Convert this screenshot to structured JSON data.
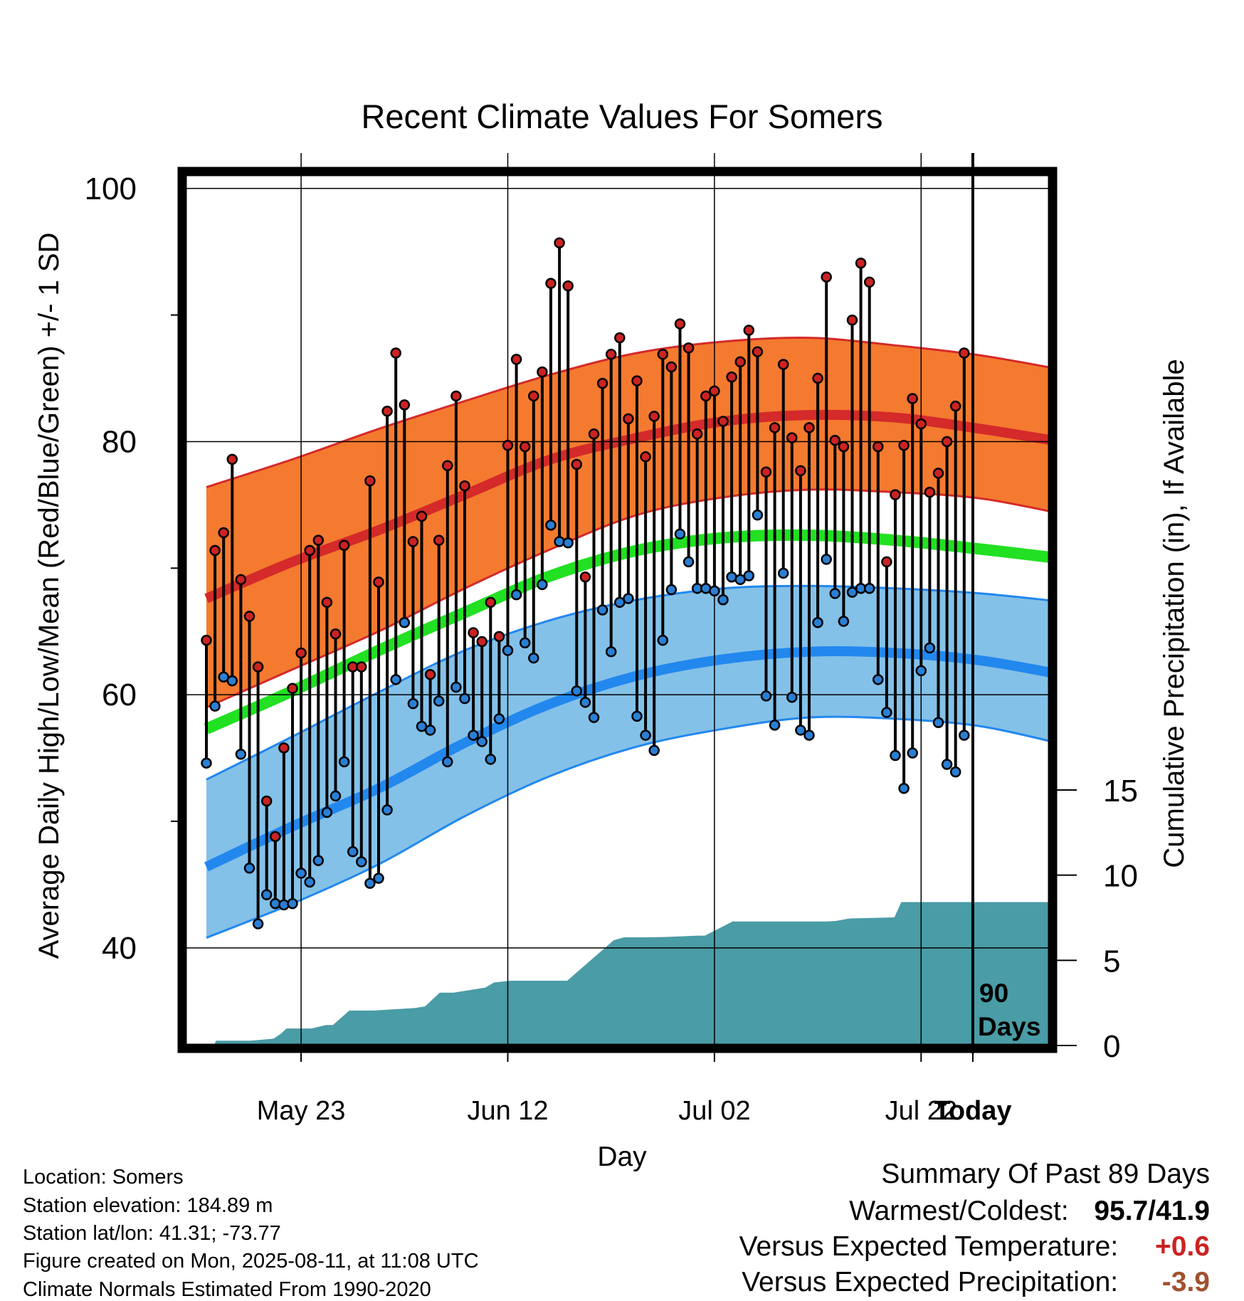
{
  "chart_data": {
    "type": "line",
    "title": "Recent Climate Values For Somers",
    "xlabel": "Day",
    "ylabel": "Average Daily High/Low/Mean (Red/Blue/Green) +/- 1 SD",
    "y2label": "Cumulative Precipitation (in), If Available",
    "x_ticks": [
      "May 23",
      "Jun 12",
      "Jul 02",
      "Jul 22",
      "Today"
    ],
    "y_ticks": [
      40,
      60,
      80,
      100
    ],
    "y2_ticks": [
      0,
      5,
      10,
      15
    ],
    "ylim": [
      32.4,
      101
    ],
    "y2lim": [
      0,
      15
    ],
    "window_marker": {
      "label_line1": "90",
      "label_line2": "Days",
      "day": 90
    },
    "normals": {
      "days": [
        0,
        10,
        20,
        30,
        40,
        50,
        60,
        70,
        80,
        90,
        100
      ],
      "high_mean": [
        67.6,
        70.5,
        73.0,
        75.8,
        78.6,
        80.3,
        81.6,
        82.1,
        81.9,
        81.0,
        79.9
      ],
      "high_upper": [
        76.4,
        78.6,
        81.0,
        83.2,
        85.3,
        87.0,
        87.9,
        88.2,
        87.6,
        86.8,
        85.6
      ],
      "high_lower": [
        59.0,
        62.0,
        65.0,
        68.4,
        71.5,
        74.2,
        75.6,
        76.2,
        76.0,
        75.5,
        74.2
      ],
      "mean_mean": [
        57.3,
        60.3,
        63.5,
        66.5,
        69.4,
        71.4,
        72.4,
        72.6,
        72.2,
        71.5,
        70.7
      ],
      "low_upper": [
        53.3,
        56.7,
        60.2,
        63.5,
        65.9,
        67.5,
        68.4,
        68.6,
        68.4,
        68.0,
        67.3
      ],
      "low_mean": [
        46.4,
        49.6,
        52.6,
        56.2,
        59.3,
        61.5,
        62.8,
        63.4,
        63.3,
        62.7,
        61.5
      ],
      "low_lower": [
        40.8,
        43.5,
        46.6,
        50.4,
        53.6,
        55.9,
        57.3,
        58.2,
        58.1,
        57.5,
        56.0
      ]
    },
    "daily": {
      "high": [
        64.3,
        71.4,
        72.8,
        78.6,
        69.1,
        66.2,
        62.2,
        51.6,
        48.8,
        55.8,
        60.5,
        63.3,
        71.4,
        72.2,
        67.3,
        64.8,
        71.8,
        62.2,
        62.2,
        76.9,
        68.9,
        82.4,
        87.0,
        82.9,
        72.1,
        74.1,
        61.6,
        72.2,
        78.1,
        83.6,
        76.5,
        64.9,
        64.2,
        67.3,
        64.6,
        79.7,
        86.5,
        79.6,
        83.6,
        85.5,
        92.5,
        95.7,
        92.3,
        78.2,
        69.3,
        80.6,
        84.6,
        86.9,
        88.2,
        81.8,
        84.8,
        78.8,
        82.0,
        86.9,
        85.9,
        89.3,
        87.4,
        80.6,
        83.6,
        84.0,
        81.6,
        85.1,
        86.3,
        88.8,
        87.1,
        77.6,
        81.1,
        86.1,
        80.3,
        77.7,
        81.1,
        85.0,
        93.0,
        80.1,
        79.6,
        89.6,
        94.1,
        92.6,
        79.6,
        70.5,
        75.8,
        79.7,
        83.4,
        81.4,
        76.0,
        77.5,
        80.0,
        82.8,
        87.0
      ],
      "low": [
        54.6,
        59.1,
        61.4,
        61.1,
        55.3,
        46.3,
        41.9,
        44.2,
        43.5,
        43.4,
        43.5,
        45.9,
        45.2,
        46.9,
        50.7,
        52.0,
        54.7,
        47.6,
        46.8,
        45.1,
        45.5,
        50.9,
        61.2,
        65.7,
        59.3,
        57.5,
        57.2,
        59.5,
        54.7,
        60.6,
        59.7,
        56.8,
        56.3,
        54.9,
        58.1,
        63.5,
        67.9,
        64.1,
        62.9,
        68.7,
        73.4,
        72.1,
        72.0,
        60.3,
        59.4,
        58.2,
        66.7,
        63.4,
        67.3,
        67.6,
        58.3,
        56.8,
        55.6,
        64.3,
        68.3,
        72.7,
        70.5,
        68.4,
        68.4,
        68.2,
        67.5,
        69.3,
        69.1,
        69.4,
        74.2,
        59.9,
        57.6,
        69.6,
        59.8,
        57.2,
        56.8,
        65.7,
        70.7,
        68.0,
        65.8,
        68.1,
        68.4,
        68.4,
        61.2,
        58.6,
        55.2,
        52.6,
        55.4,
        61.9,
        63.7,
        57.8,
        54.5,
        53.9,
        56.8
      ]
    },
    "precip": {
      "days": [
        0,
        0.9,
        1.1,
        4.9,
        5.1,
        7.8,
        8.7,
        9.3,
        10.3,
        11.7,
        12.2,
        13.9,
        14.7,
        16.6,
        17.4,
        19.4,
        24.2,
        25.4,
        27.1,
        27.7,
        28.7,
        29.8,
        32.4,
        33.4,
        35.3,
        36.4,
        36.9,
        38.5,
        41.5,
        41.9,
        47.3,
        48.5,
        49.6,
        51.2,
        53.4,
        57.1,
        57.9,
        61.1,
        62.5,
        62.8,
        72.0,
        73.1,
        74.7,
        79.9,
        80.7,
        99.9,
        100.0
      ],
      "values": [
        0,
        0,
        0.28,
        0.28,
        0.28,
        0.4,
        0.71,
        1.0,
        1.0,
        1.0,
        1.0,
        1.2,
        1.2,
        2.05,
        2.05,
        2.05,
        2.2,
        2.3,
        3.1,
        3.1,
        3.1,
        3.19,
        3.4,
        3.7,
        3.8,
        3.8,
        3.8,
        3.8,
        3.8,
        3.8,
        6.18,
        6.35,
        6.35,
        6.35,
        6.37,
        6.45,
        6.45,
        7.28,
        7.28,
        7.28,
        7.28,
        7.31,
        7.46,
        7.52,
        8.42,
        8.42,
        8.42
      ]
    }
  },
  "info": {
    "location": "Location: Somers",
    "elevation": "Station elevation: 184.89 m",
    "latlon": "Station lat/lon: 41.31; -73.77",
    "created": "Figure created on Mon, 2025-08-11, at 11:08 UTC",
    "normals": "Climate Normals Estimated From 1990-2020"
  },
  "summary": {
    "title": "Summary Of Past 89 Days",
    "warm_cold_label": "Warmest/Coldest:",
    "warm_cold_value": "95.7/41.9",
    "temp_label": "Versus Expected Temperature:",
    "temp_value": "+0.6",
    "precip_label": "Versus Expected Precipitation:",
    "precip_value": "-3.9"
  },
  "colors": {
    "high_band": "#f47a2f",
    "high_line": "#d42a2a",
    "mean_line": "#22e022",
    "low_band": "#84c1e8",
    "low_line": "#2288ee",
    "precip_fill": "#4a9ca6",
    "high_dot": "#cc2222",
    "low_dot": "#2a7fd4",
    "temp_value": "#cc2222",
    "precip_value": "#a0522d"
  }
}
